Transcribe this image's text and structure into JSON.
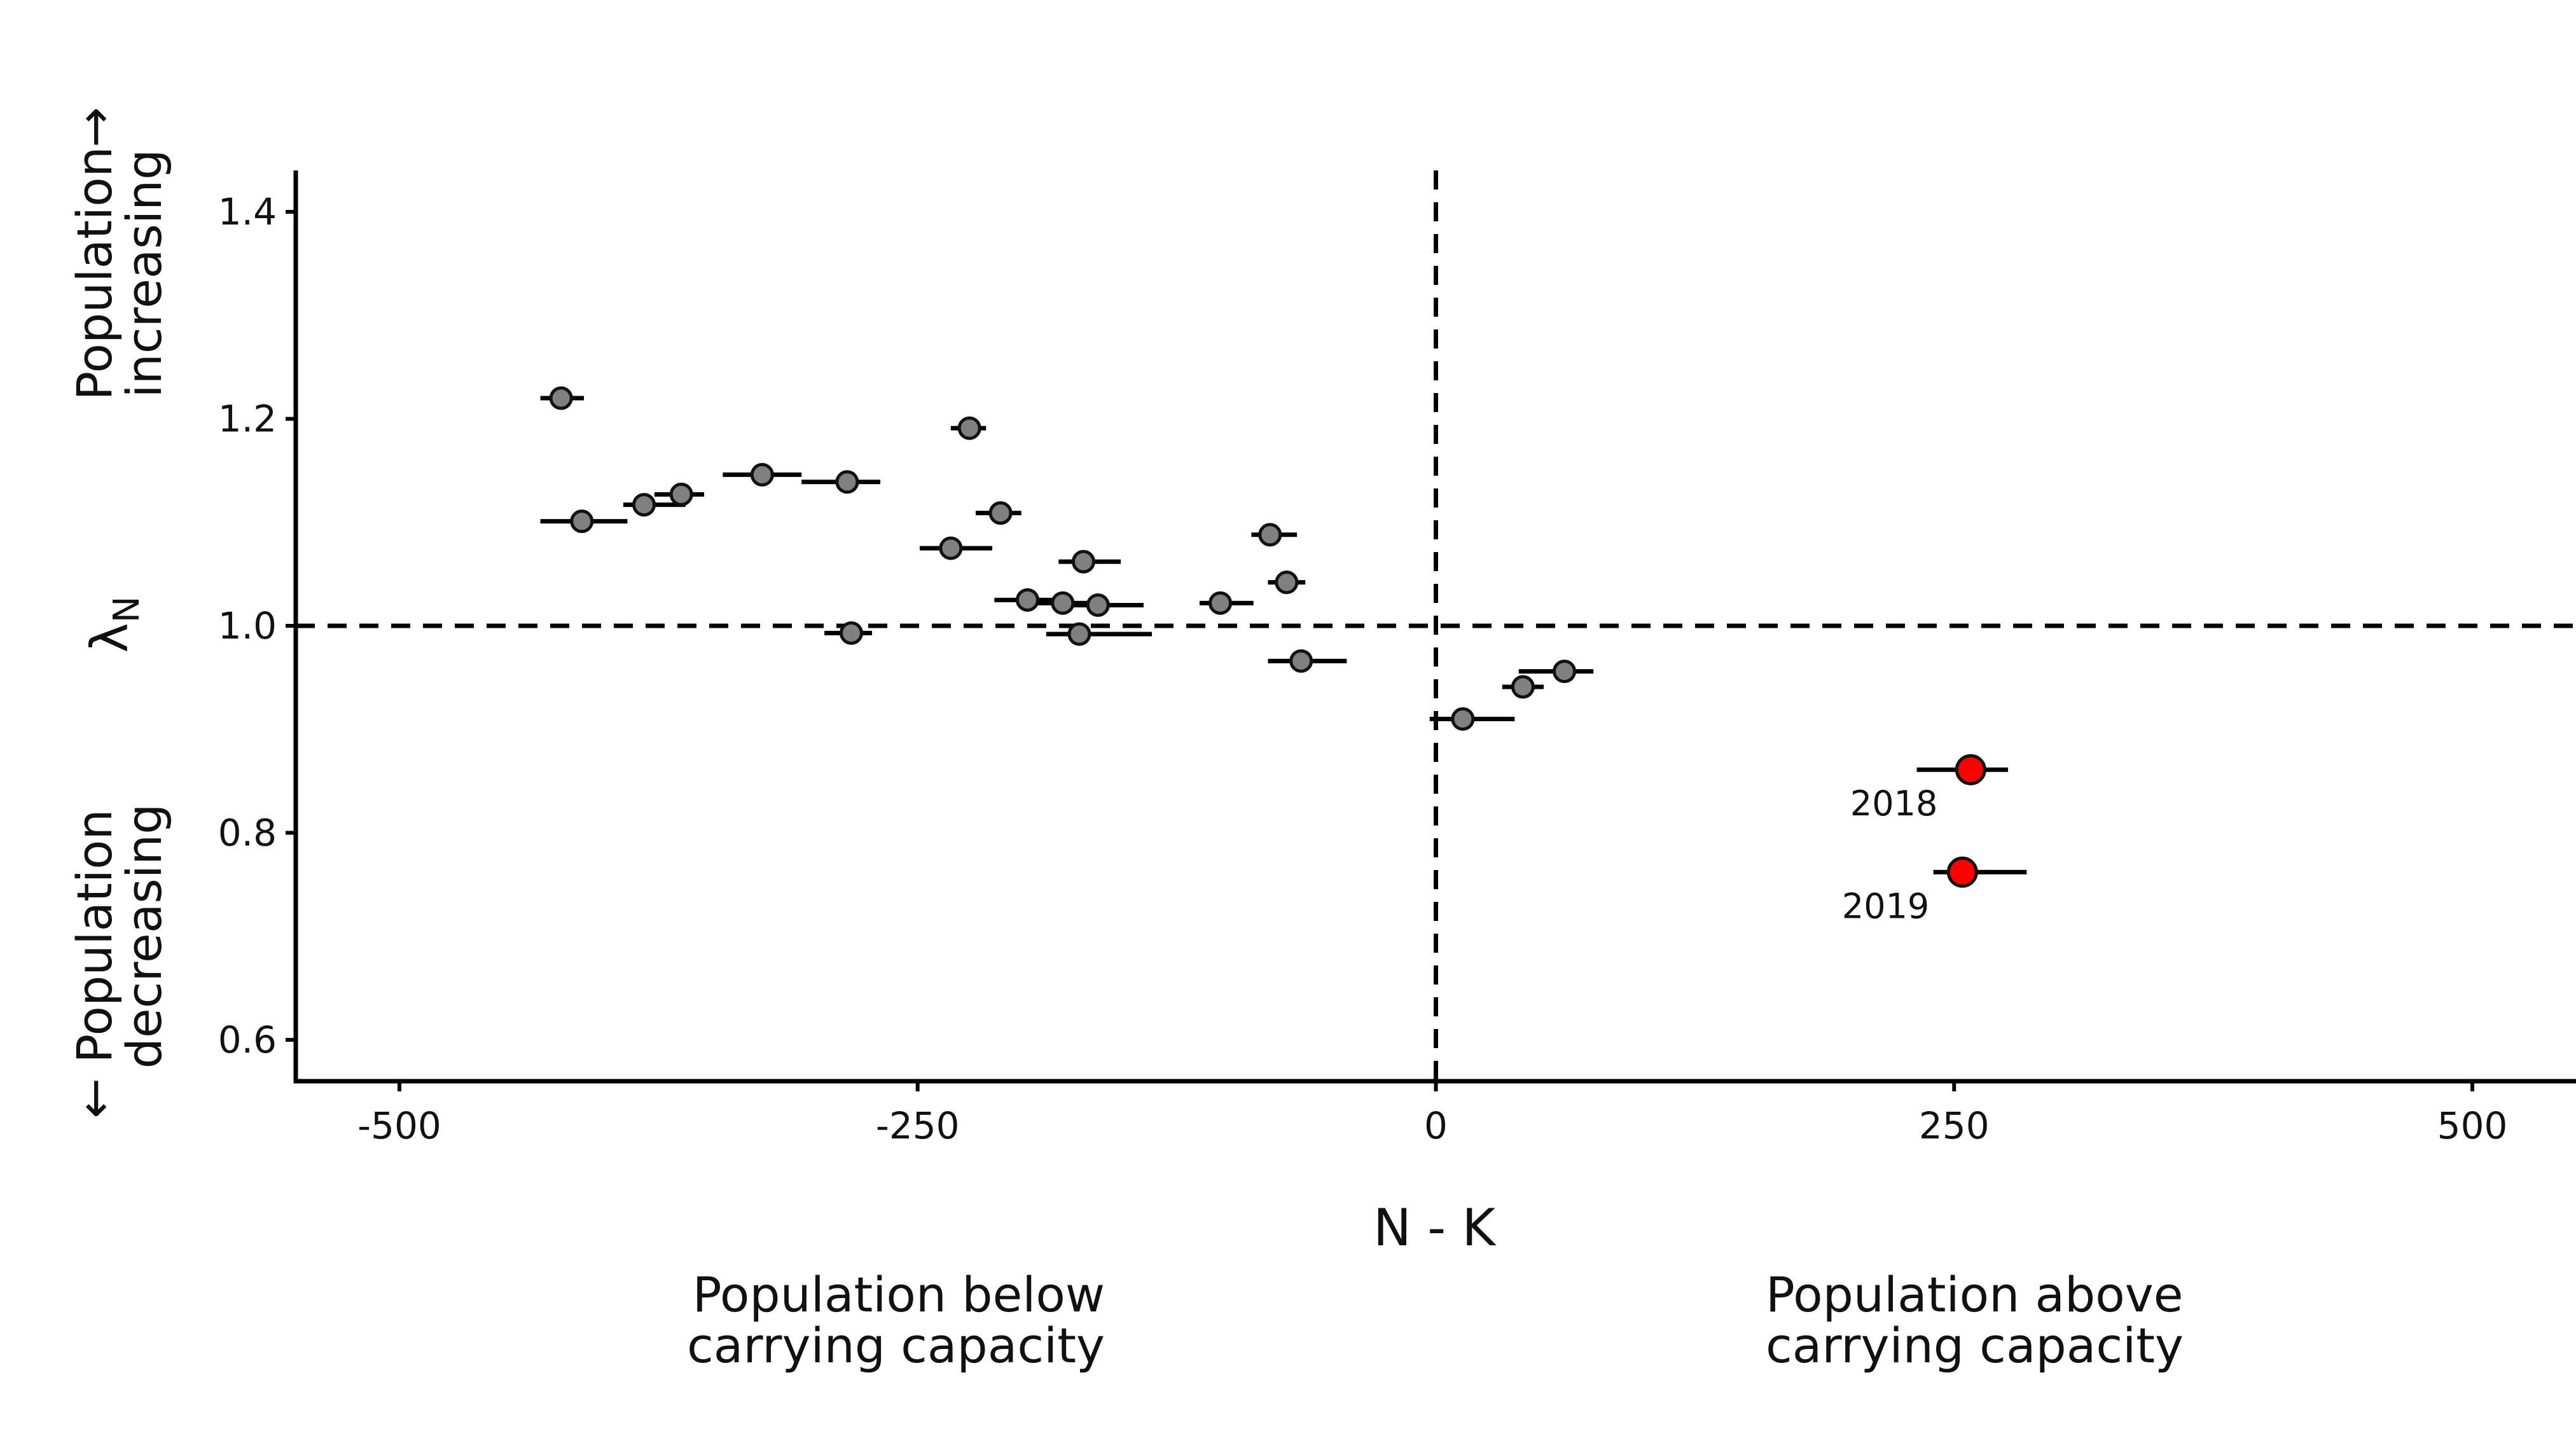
{
  "chart_data": {
    "type": "scatter",
    "title": "",
    "xlabel": "N - K",
    "ylabel": "λ",
    "ylabel_subscript": "N",
    "xlim": [
      -550,
      550
    ],
    "ylim": [
      0.56,
      1.44
    ],
    "xticks": [
      -500,
      -250,
      0,
      250,
      500
    ],
    "xtick_labels": [
      "-500",
      "-250",
      "0",
      "250",
      "500"
    ],
    "yticks": [
      0.6,
      0.8,
      1.0,
      1.2,
      1.4
    ],
    "ytick_labels": [
      "0.6",
      "0.8",
      "1.0",
      "1.2",
      "1.4"
    ],
    "grid": false,
    "reference_lines": [
      {
        "orientation": "horizontal",
        "value": 1.0,
        "style": "dashed"
      },
      {
        "orientation": "vertical",
        "value": 0,
        "style": "dashed"
      }
    ],
    "y_annotations": {
      "increasing": [
        "Population",
        "increasing"
      ],
      "increasing_arrow": "→",
      "decreasing": [
        "Population",
        "decreasing"
      ],
      "decreasing_arrow": "←"
    },
    "x_annotations": {
      "below": [
        "Population below",
        "carrying capacity"
      ],
      "above": [
        "Population above",
        "carrying capacity"
      ]
    },
    "colors": {
      "normal": "#808080",
      "highlight": "#ff0000",
      "outline": "#111111"
    },
    "points": [
      {
        "x": -422,
        "y": 1.22,
        "xmin": -432,
        "xmax": -411,
        "highlight": false
      },
      {
        "x": -412,
        "y": 1.101,
        "xmin": -432,
        "xmax": -390,
        "highlight": false
      },
      {
        "x": -382,
        "y": 1.117,
        "xmin": -392,
        "xmax": -362,
        "highlight": false
      },
      {
        "x": -364,
        "y": 1.127,
        "xmin": -377,
        "xmax": -353,
        "highlight": false
      },
      {
        "x": -325,
        "y": 1.146,
        "xmin": -344,
        "xmax": -306,
        "highlight": false
      },
      {
        "x": -284,
        "y": 1.139,
        "xmin": -306,
        "xmax": -268,
        "highlight": false
      },
      {
        "x": -282,
        "y": 0.993,
        "xmin": -295,
        "xmax": -272,
        "highlight": false
      },
      {
        "x": -234,
        "y": 1.075,
        "xmin": -249,
        "xmax": -214,
        "highlight": false
      },
      {
        "x": -225,
        "y": 1.191,
        "xmin": -234,
        "xmax": -217,
        "highlight": false
      },
      {
        "x": -210,
        "y": 1.109,
        "xmin": -222,
        "xmax": -200,
        "highlight": false
      },
      {
        "x": -197,
        "y": 1.025,
        "xmin": -213,
        "xmax": -178,
        "highlight": false
      },
      {
        "x": -180,
        "y": 1.022,
        "xmin": -196,
        "xmax": -163,
        "highlight": false
      },
      {
        "x": -170,
        "y": 1.062,
        "xmin": -182,
        "xmax": -152,
        "highlight": false
      },
      {
        "x": -163,
        "y": 1.02,
        "xmin": -177,
        "xmax": -141,
        "highlight": false
      },
      {
        "x": -172,
        "y": 0.992,
        "xmin": -188,
        "xmax": -137,
        "highlight": false
      },
      {
        "x": -104,
        "y": 1.022,
        "xmin": -114,
        "xmax": -88,
        "highlight": false
      },
      {
        "x": -80,
        "y": 1.088,
        "xmin": -89,
        "xmax": -67,
        "highlight": false
      },
      {
        "x": -72,
        "y": 1.042,
        "xmin": -81,
        "xmax": -63,
        "highlight": false
      },
      {
        "x": -65,
        "y": 0.966,
        "xmin": -81,
        "xmax": -43,
        "highlight": false
      },
      {
        "x": 13,
        "y": 0.91,
        "xmin": -3,
        "xmax": 38,
        "highlight": false
      },
      {
        "x": 42,
        "y": 0.941,
        "xmin": 32,
        "xmax": 52,
        "highlight": false
      },
      {
        "x": 62,
        "y": 0.956,
        "xmin": 40,
        "xmax": 76,
        "highlight": false
      },
      {
        "x": 258,
        "y": 0.861,
        "xmin": 232,
        "xmax": 276,
        "highlight": true,
        "label": "2018"
      },
      {
        "x": 254,
        "y": 0.762,
        "xmin": 240,
        "xmax": 285,
        "highlight": true,
        "label": "2019"
      }
    ]
  }
}
